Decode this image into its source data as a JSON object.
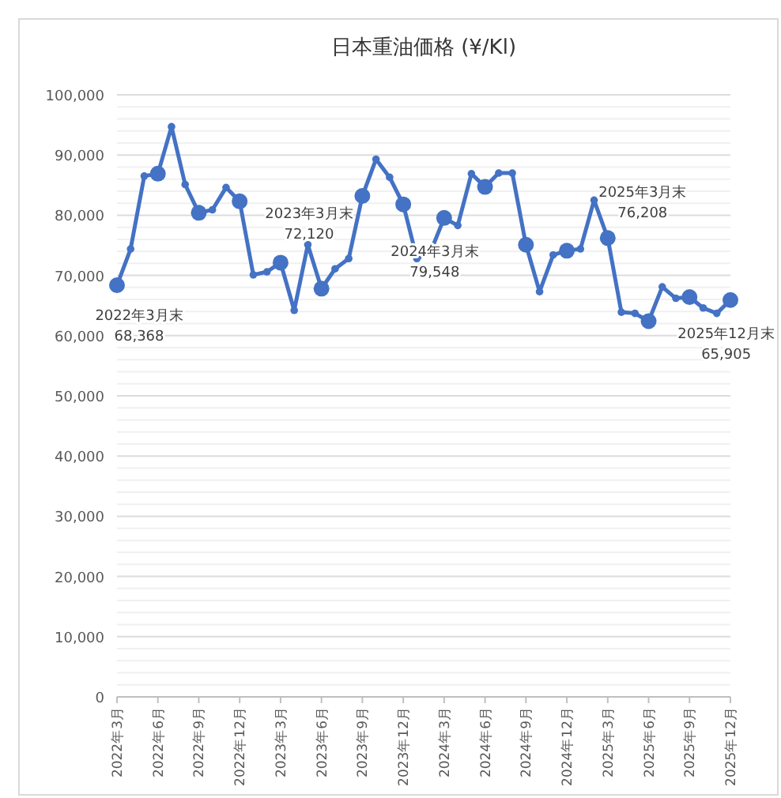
{
  "chart_data": {
    "type": "line",
    "title": "日本重油価格 (¥/Kl)",
    "categories": [
      "2022年3月",
      null,
      null,
      "2022年6月",
      null,
      null,
      "2022年9月",
      null,
      null,
      "2022年12月",
      null,
      null,
      "2023年3月",
      null,
      null,
      "2023年6月",
      null,
      null,
      "2023年9月",
      null,
      null,
      "2023年12月",
      null,
      null,
      "2024年3月",
      null,
      null,
      "2024年6月",
      null,
      null,
      "2024年9月",
      null,
      null,
      "2024年12月",
      null,
      null,
      "2025年3月",
      null,
      null,
      "2025年6月",
      null,
      null,
      "2025年9月",
      null,
      null,
      "2025年12月"
    ],
    "series": [
      {
        "color": "#4472c4",
        "marker": "circle",
        "values": [
          68368,
          74400,
          86500,
          86900,
          94700,
          85100,
          80400,
          80900,
          84600,
          82300,
          70100,
          70600,
          72120,
          64200,
          75100,
          67800,
          71100,
          72800,
          83200,
          89300,
          86300,
          81800,
          72800,
          73900,
          79548,
          78300,
          86900,
          84700,
          87000,
          87000,
          75100,
          67300,
          73400,
          74100,
          74400,
          82500,
          76208,
          63900,
          63700,
          62400,
          68100,
          66200,
          66400,
          64600,
          63700,
          65905
        ]
      },
      {
        "type": "scatter",
        "color": "#4472c4",
        "marker": "circle",
        "values": [
          68368,
          null,
          null,
          86900,
          null,
          null,
          80400,
          null,
          null,
          82300,
          null,
          null,
          72120,
          null,
          null,
          67800,
          null,
          null,
          83200,
          null,
          null,
          81800,
          null,
          null,
          79548,
          null,
          null,
          84700,
          null,
          null,
          75100,
          null,
          null,
          74100,
          null,
          null,
          76208,
          null,
          null,
          62400,
          null,
          null,
          66400,
          null,
          null,
          65905
        ]
      }
    ],
    "ylim": [
      0,
      100000
    ],
    "yticks": [
      0,
      {
        "value": 2000,
        "label": null
      },
      {
        "value": 4000,
        "label": null
      },
      {
        "value": 6000,
        "label": null
      },
      {
        "value": 8000,
        "label": null
      },
      {
        "value": 10000,
        "label": "10,000"
      },
      {
        "value": 12000,
        "label": null
      },
      {
        "value": 14000,
        "label": null
      },
      {
        "value": 16000,
        "label": null
      },
      {
        "value": 18000,
        "label": null
      },
      {
        "value": 20000,
        "label": "20,000"
      },
      {
        "value": 22000,
        "label": null
      },
      {
        "value": 24000,
        "label": null
      },
      {
        "value": 26000,
        "label": null
      },
      {
        "value": 28000,
        "label": null
      },
      {
        "value": 30000,
        "label": "30,000"
      },
      {
        "value": 32000,
        "label": null
      },
      {
        "value": 34000,
        "label": null
      },
      {
        "value": 36000,
        "label": null
      },
      {
        "value": 38000,
        "label": null
      },
      {
        "value": 40000,
        "label": "40,000"
      },
      {
        "value": 42000,
        "label": null
      },
      {
        "value": 44000,
        "label": null
      },
      {
        "value": 46000,
        "label": null
      },
      {
        "value": 48000,
        "label": null
      },
      {
        "value": 50000,
        "label": "50,000"
      },
      {
        "value": 52000,
        "label": null
      },
      {
        "value": 54000,
        "label": null
      },
      {
        "value": 56000,
        "label": null
      },
      {
        "value": 58000,
        "label": null
      },
      {
        "value": 60000,
        "label": "60,000"
      },
      {
        "value": 62000,
        "label": null
      },
      {
        "value": 64000,
        "label": null
      },
      {
        "value": 66000,
        "label": null
      },
      {
        "value": 68000,
        "label": null
      },
      {
        "value": 70000,
        "label": "70,000"
      },
      {
        "value": 72000,
        "label": null
      },
      {
        "value": 74000,
        "label": null
      },
      {
        "value": 76000,
        "label": null
      },
      {
        "value": 78000,
        "label": null
      },
      {
        "value": 80000,
        "label": "80,000"
      },
      {
        "value": 82000,
        "label": null
      },
      {
        "value": 84000,
        "label": null
      },
      {
        "value": 86000,
        "label": null
      },
      {
        "value": 88000,
        "label": null
      },
      {
        "value": 90000,
        "label": "90,000"
      },
      {
        "value": 92000,
        "label": null
      },
      {
        "value": 94000,
        "label": null
      },
      {
        "value": 96000,
        "label": null
      },
      {
        "value": 98000,
        "label": null
      },
      {
        "value": 100000,
        "label": "100,000"
      }
    ],
    "grid": "y",
    "annotations": [
      {
        "text": "2022年3月末\n68,368",
        "x": "2022年3月",
        "y": 68368
      },
      {
        "text": "2023年3月末\n72,120",
        "x": "2023年3月",
        "y": 72120
      },
      {
        "text": "2024年3月末\n79,548",
        "x": "2024年3月",
        "y": 79548
      },
      {
        "text": "2025年3月末\n76,208",
        "x": "2025年3月",
        "y": 76208
      },
      {
        "text": "2025年12月末\n65,905",
        "x": "2025年12月",
        "y": 65905
      }
    ]
  }
}
